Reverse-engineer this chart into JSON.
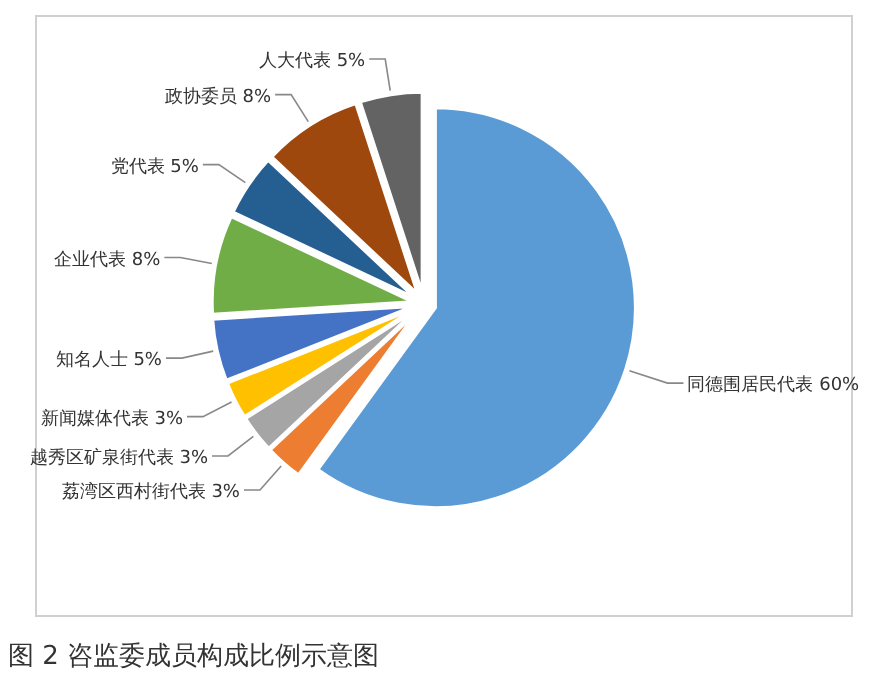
{
  "chart_data": {
    "type": "pie",
    "title": "图 2 咨监委成员构成比例示意图",
    "categories": [
      "同德围居民代表",
      "荔湾区西村街代表",
      "越秀区矿泉街代表",
      "新闻媒体代表",
      "知名人士",
      "企业代表",
      "党代表",
      "政协委员",
      "人大代表"
    ],
    "values": [
      60,
      3,
      3,
      3,
      5,
      8,
      5,
      8,
      5
    ],
    "colors": [
      "#5b9bd5",
      "#ed7d31",
      "#a5a5a5",
      "#ffc000",
      "#4472c4",
      "#70ad47",
      "#255e91",
      "#9e480e",
      "#636363"
    ],
    "value_labels": [
      "60%",
      "3%",
      "3%",
      "3%",
      "5%",
      "8%",
      "5%",
      "8%",
      "5%"
    ]
  }
}
